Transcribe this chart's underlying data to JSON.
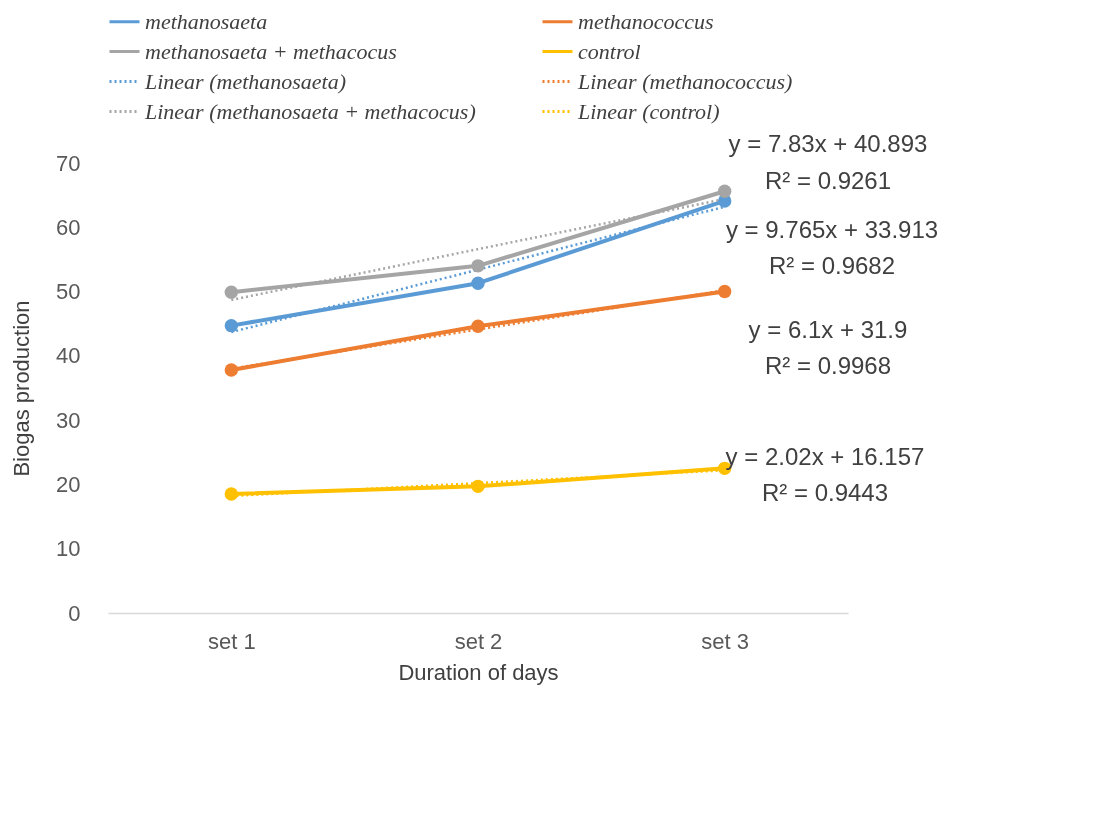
{
  "chart_data": {
    "type": "line",
    "xlabel": "Duration of days",
    "ylabel": "Biogas production",
    "categories": [
      "set 1",
      "set 2",
      "set 3"
    ],
    "ylim": [
      0,
      70
    ],
    "yticks": [
      0,
      10,
      20,
      30,
      40,
      50,
      60,
      70
    ],
    "grid": false,
    "legend": "top",
    "series": [
      {
        "name": "methanosaeta",
        "color": "#5b9bd5",
        "values": [
          44.7,
          51.3,
          64.1
        ],
        "marker": "circle",
        "line_style": "solid"
      },
      {
        "name": "methanococcus",
        "color": "#ed7d31",
        "values": [
          37.8,
          44.6,
          50.0
        ],
        "marker": "circle",
        "line_style": "solid"
      },
      {
        "name": "methanosaeta + methacocus",
        "color": "#a5a5a5",
        "values": [
          49.9,
          54.0,
          65.6
        ],
        "marker": "circle",
        "line_style": "solid"
      },
      {
        "name": "control",
        "color": "#ffc000",
        "values": [
          18.5,
          19.7,
          22.5
        ],
        "marker": "circle",
        "line_style": "solid"
      },
      {
        "name": "Linear (methanosaeta)",
        "color": "#5b9bd5",
        "values": [
          43.7,
          53.4,
          63.2
        ],
        "marker": "none",
        "line_style": "dotted"
      },
      {
        "name": "Linear (methanococcus)",
        "color": "#ed7d31",
        "values": [
          38.0,
          44.1,
          50.2
        ],
        "marker": "none",
        "line_style": "dotted"
      },
      {
        "name": "Linear (methanosaeta + methacocus)",
        "color": "#a5a5a5",
        "values": [
          48.7,
          56.6,
          64.4
        ],
        "marker": "none",
        "line_style": "dotted"
      },
      {
        "name": "Linear (control)",
        "color": "#ffc000",
        "values": [
          18.2,
          20.2,
          22.2
        ],
        "marker": "none",
        "line_style": "dotted"
      }
    ],
    "annotations": [
      "y = 7.83x + 40.893",
      "R² = 0.9261",
      "y = 9.765x + 33.913",
      "R² = 0.9682",
      "y = 6.1x + 31.9",
      "R² = 0.9968",
      "y = 2.02x + 16.157",
      "R² = 0.9443"
    ]
  }
}
